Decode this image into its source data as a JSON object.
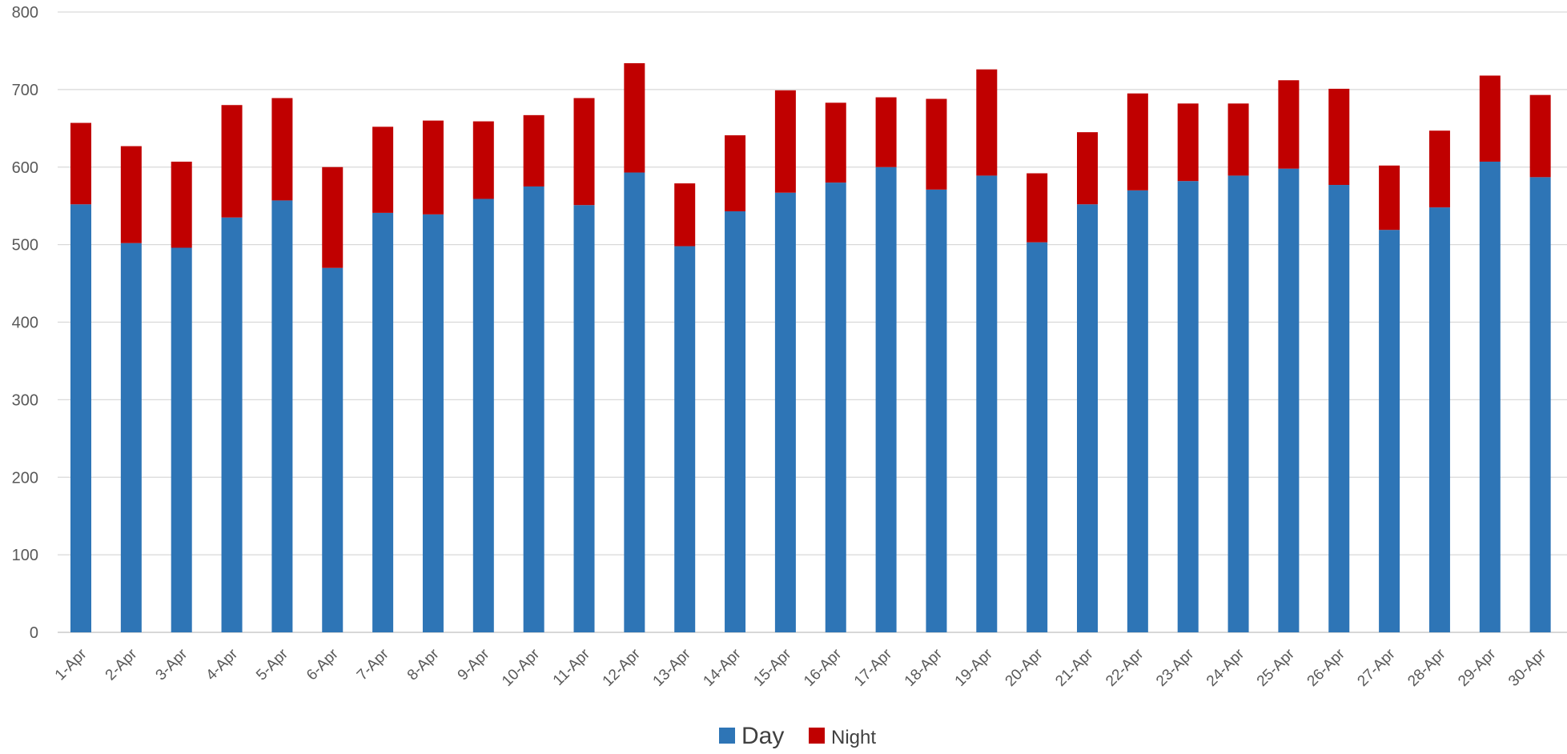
{
  "chart_data": {
    "type": "bar",
    "stacked": true,
    "title": "",
    "xlabel": "",
    "ylabel": "",
    "ylim": [
      0,
      800
    ],
    "yticks": [
      0,
      100,
      200,
      300,
      400,
      500,
      600,
      700,
      800
    ],
    "grid": true,
    "legend_position": "bottom",
    "categories": [
      "1-Apr",
      "2-Apr",
      "3-Apr",
      "4-Apr",
      "5-Apr",
      "6-Apr",
      "7-Apr",
      "8-Apr",
      "9-Apr",
      "10-Apr",
      "11-Apr",
      "12-Apr",
      "13-Apr",
      "14-Apr",
      "15-Apr",
      "16-Apr",
      "17-Apr",
      "18-Apr",
      "19-Apr",
      "20-Apr",
      "21-Apr",
      "22-Apr",
      "23-Apr",
      "24-Apr",
      "25-Apr",
      "26-Apr",
      "27-Apr",
      "28-Apr",
      "29-Apr",
      "30-Apr"
    ],
    "series": [
      {
        "name": "Day",
        "color": "#2E75B6",
        "values": [
          552,
          502,
          496,
          535,
          557,
          470,
          541,
          539,
          559,
          575,
          551,
          593,
          498,
          543,
          567,
          580,
          600,
          571,
          589,
          503,
          552,
          570,
          582,
          589,
          598,
          577,
          519,
          548,
          607,
          587
        ]
      },
      {
        "name": "Night",
        "color": "#C00000",
        "values": [
          105,
          125,
          111,
          145,
          132,
          130,
          111,
          121,
          100,
          92,
          138,
          141,
          81,
          98,
          132,
          103,
          90,
          117,
          137,
          89,
          93,
          125,
          100,
          93,
          114,
          124,
          83,
          99,
          111,
          106
        ]
      }
    ]
  }
}
